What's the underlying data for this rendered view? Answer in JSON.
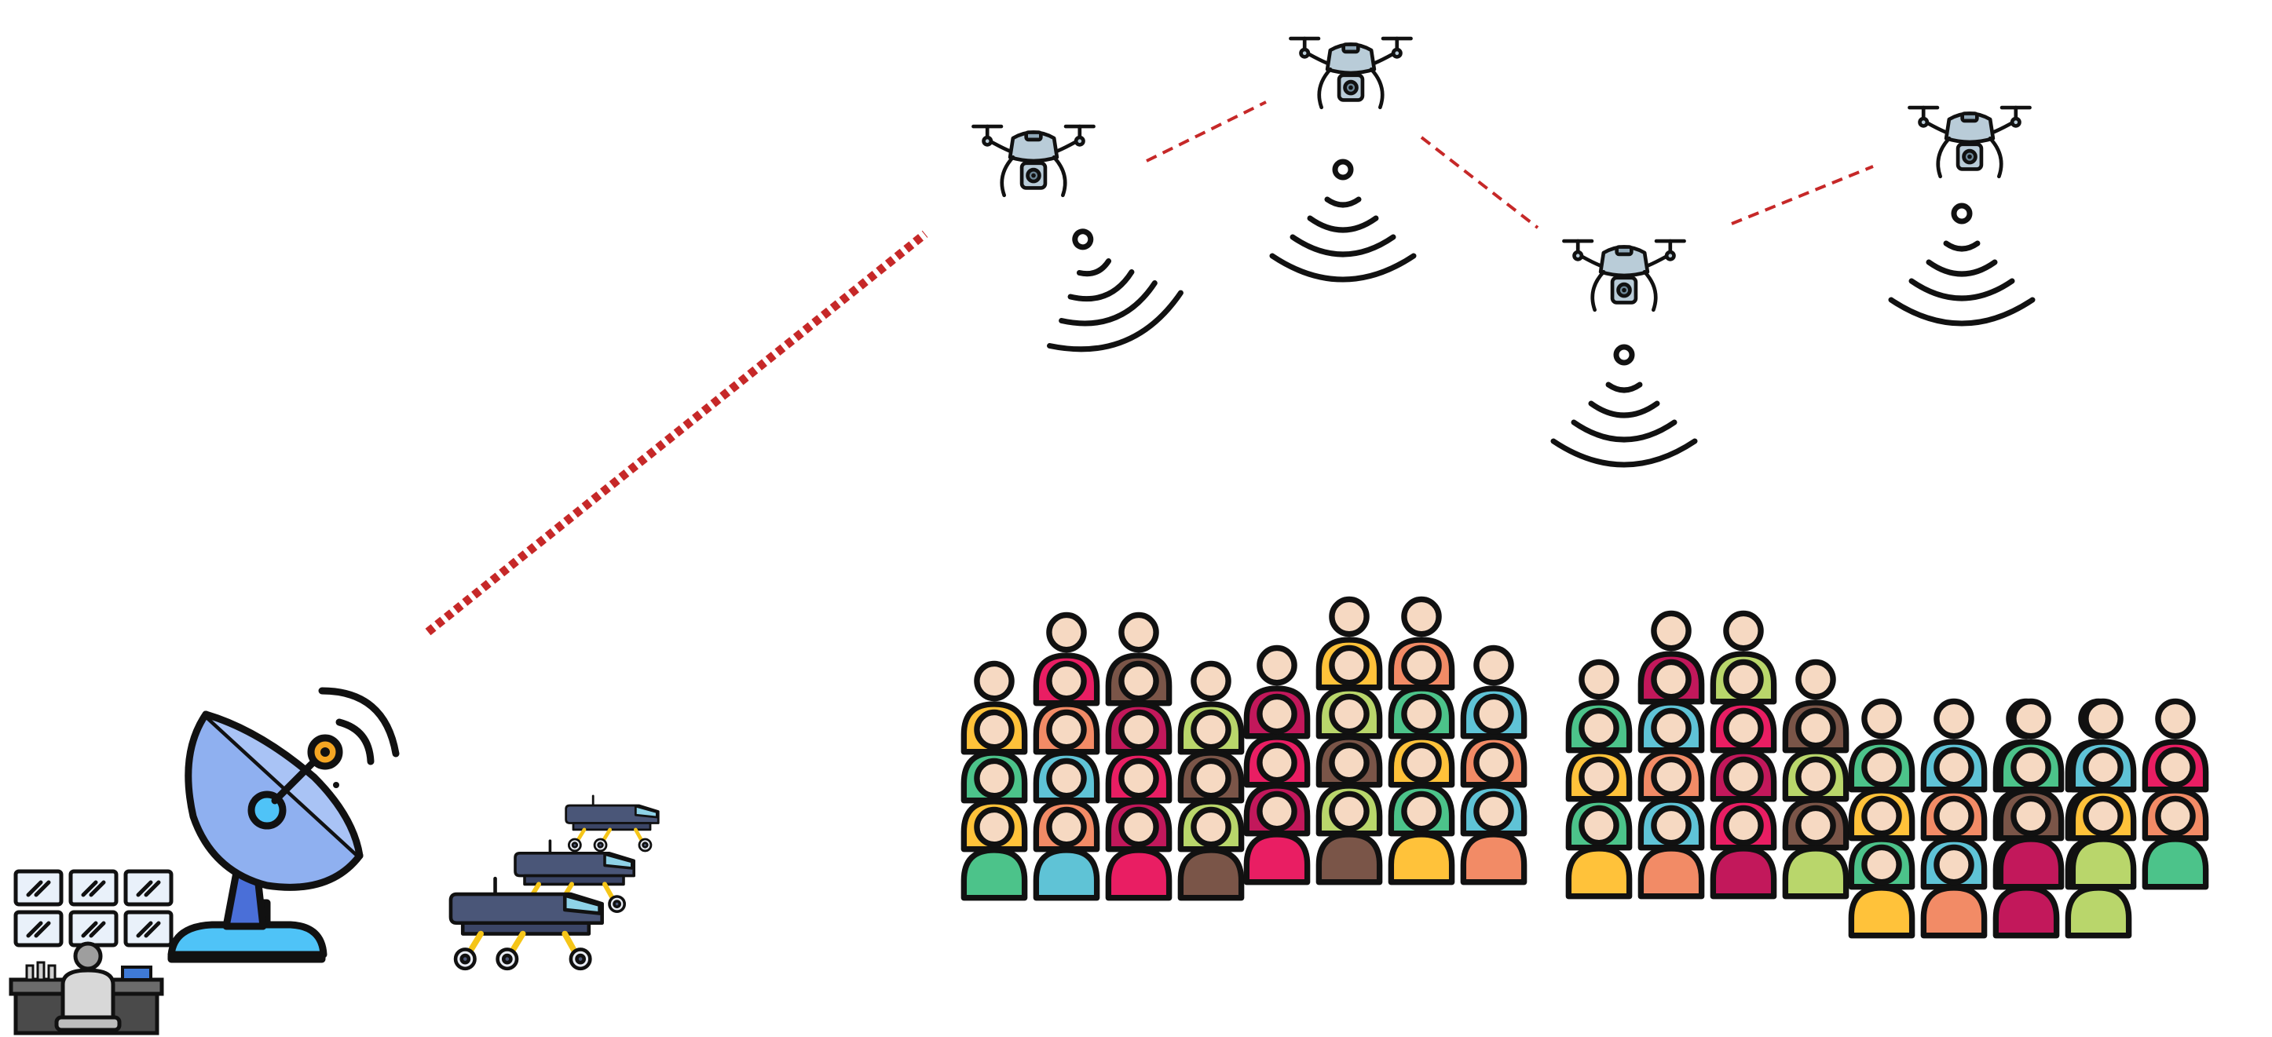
{
  "scene": {
    "background": "#ffffff",
    "link_color": "#c62828",
    "outline_color": "#111111"
  },
  "nodes": {
    "control_center": {
      "icon": "control-room-operator-icon"
    },
    "ground_station": {
      "icon": "satellite-dish-icon",
      "dish_color": "#8fb0f0",
      "base_color": "#4fc3f7"
    },
    "rovers": {
      "icon": "rover-icon",
      "count": 3,
      "body_color": "#4a5678",
      "window_color": "#8fd3e8",
      "leg_color": "#f5c518"
    },
    "drones": {
      "icon": "drone-icon",
      "count": 4,
      "body_color": "#b9ccd8"
    },
    "crowd": {
      "icon": "crowd-icon",
      "shirt_colors": [
        "#e91e63",
        "#f28b66",
        "#4cc38a",
        "#7a5548",
        "#c2185b",
        "#5fc3d6",
        "#ffc23a",
        "#b9d66b"
      ],
      "skin_color": "#f6d9c2"
    }
  },
  "links": [
    {
      "from": "ground_station",
      "to": "drone_1",
      "style": "thick-dotted"
    },
    {
      "from": "drone_1",
      "to": "drone_2",
      "style": "dashed"
    },
    {
      "from": "drone_2",
      "to": "drone_3",
      "style": "dashed"
    },
    {
      "from": "drone_3",
      "to": "drone_4",
      "style": "dashed"
    }
  ],
  "signals": {
    "icon": "wireless-signal-icon",
    "count": 4
  }
}
